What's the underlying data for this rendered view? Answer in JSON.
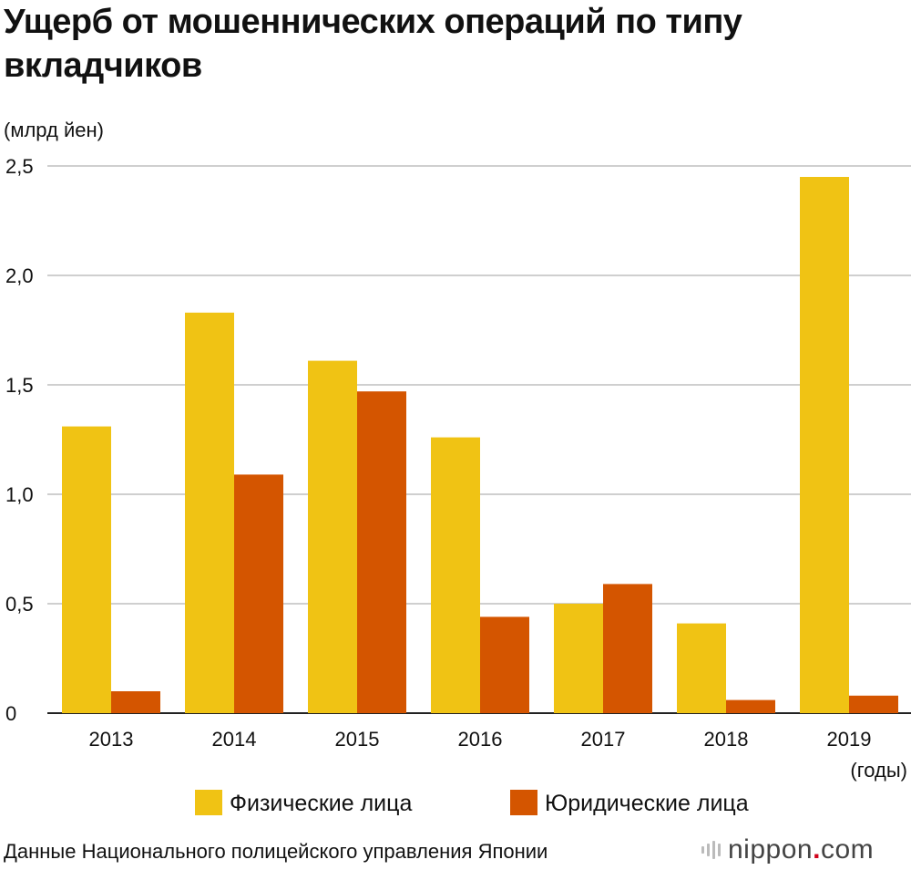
{
  "header": {
    "title": "Ущерб от мошеннических операций по типу вкладчиков"
  },
  "chart_data": {
    "type": "bar",
    "title": "Ущерб от мошеннических операций по типу вкладчиков",
    "ylabel": "(млрд йен)",
    "xlabel": "(годы)",
    "ylim": [
      0,
      2.5
    ],
    "yticks": [
      0,
      0.5,
      1.0,
      1.5,
      2.0,
      2.5
    ],
    "ytick_labels": [
      "0",
      "0,5",
      "1,0",
      "1,5",
      "2,0",
      "2,5"
    ],
    "grid": true,
    "legend_position": "bottom-center",
    "categories": [
      "2013",
      "2014",
      "2015",
      "2016",
      "2017",
      "2018",
      "2019"
    ],
    "series": [
      {
        "name": "Физические лица",
        "color": "#f0c314",
        "values": [
          1.31,
          1.83,
          1.61,
          1.26,
          0.5,
          0.41,
          2.45
        ]
      },
      {
        "name": "Юридические лица",
        "color": "#d45500",
        "values": [
          0.1,
          1.09,
          1.47,
          0.44,
          0.59,
          0.06,
          0.08
        ]
      }
    ]
  },
  "footer": {
    "source": "Данные Национального полицейского управления Японии",
    "logo_name": "nippon",
    "logo_dot": ".",
    "logo_tld": "com"
  }
}
